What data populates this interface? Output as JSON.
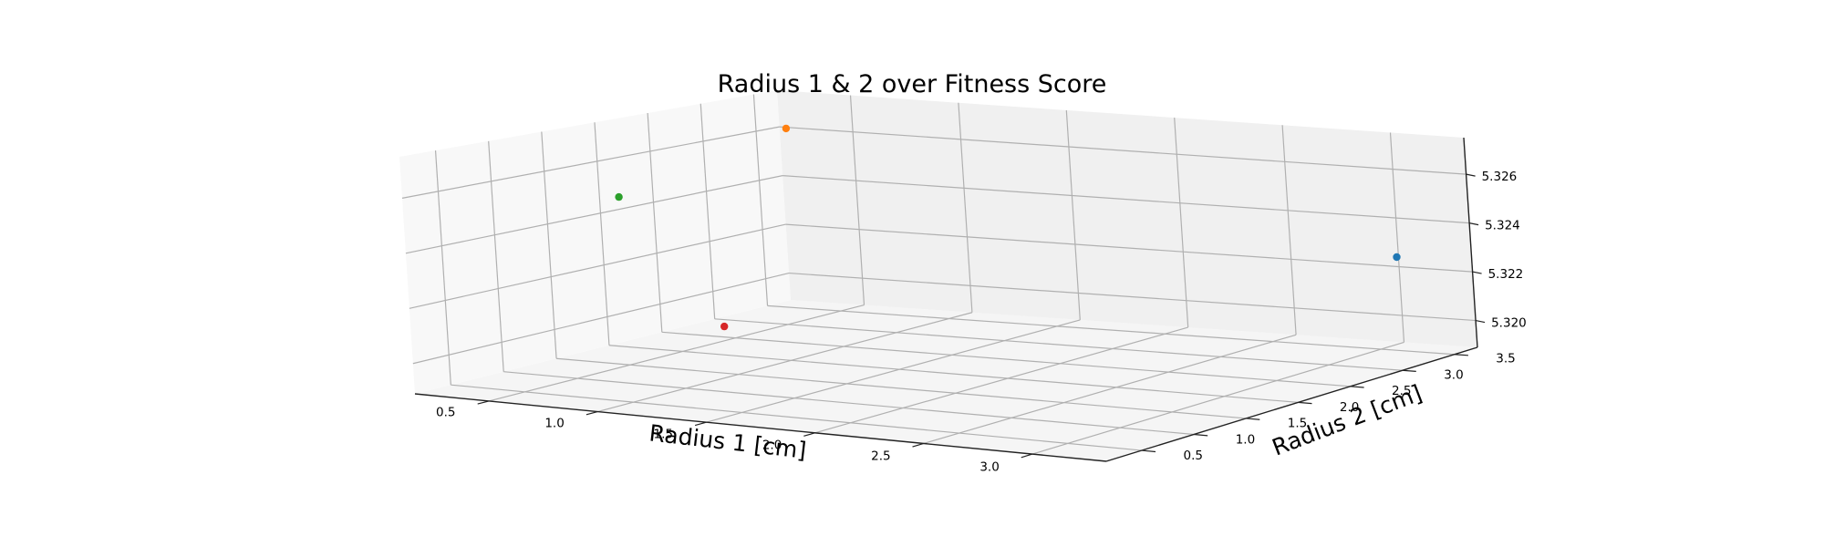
{
  "chart_data": {
    "type": "scatter",
    "title": "Radius 1 & 2 over Fitness Score",
    "xlabel": "Radius 1 [cm]",
    "ylabel": "Radius 2 [cm]",
    "zlabel": "",
    "projection": "3d",
    "grid": true,
    "xlim": [
      0.16,
      3.34
    ],
    "ylim": [
      0.16,
      3.72
    ],
    "zlim": [
      5.3189,
      5.3275
    ],
    "x_ticks": [
      "0.5",
      "1.0",
      "1.5",
      "2.0",
      "2.5",
      "3.0"
    ],
    "y_ticks": [
      "0.5",
      "1.0",
      "1.5",
      "2.0",
      "2.5",
      "3.0",
      "3.5"
    ],
    "z_ticks": [
      "5.320",
      "5.322",
      "5.324",
      "5.326"
    ],
    "points": [
      {
        "x": 3.2,
        "y": 3.3,
        "z": 5.323,
        "color": "#1f77b4"
      },
      {
        "x": 0.3,
        "y": 3.5,
        "z": 5.3262,
        "color": "#ff7f0e"
      },
      {
        "x": 0.3,
        "y": 1.9,
        "z": 5.3248,
        "color": "#2ca02c"
      },
      {
        "x": 0.7,
        "y": 2.0,
        "z": 5.32,
        "color": "#d62728"
      }
    ]
  }
}
